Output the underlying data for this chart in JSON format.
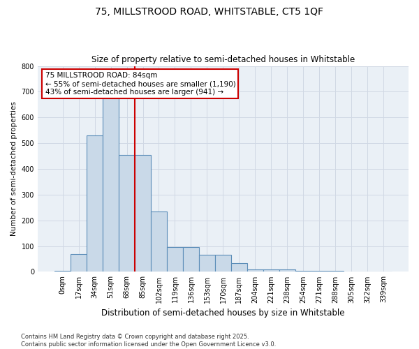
{
  "title_line1": "75, MILLSTROOD ROAD, WHITSTABLE, CT5 1QF",
  "title_line2": "Size of property relative to semi-detached houses in Whitstable",
  "xlabel": "Distribution of semi-detached houses by size in Whitstable",
  "ylabel": "Number of semi-detached properties",
  "footnote": "Contains HM Land Registry data © Crown copyright and database right 2025.\nContains public sector information licensed under the Open Government Licence v3.0.",
  "bin_labels": [
    "0sqm",
    "17sqm",
    "34sqm",
    "51sqm",
    "68sqm",
    "85sqm",
    "102sqm",
    "119sqm",
    "136sqm",
    "153sqm",
    "170sqm",
    "187sqm",
    "204sqm",
    "221sqm",
    "238sqm",
    "254sqm",
    "271sqm",
    "288sqm",
    "305sqm",
    "322sqm",
    "339sqm"
  ],
  "bar_values": [
    5,
    70,
    530,
    680,
    455,
    455,
    235,
    95,
    95,
    65,
    65,
    35,
    10,
    10,
    10,
    5,
    5,
    5,
    0,
    0,
    0
  ],
  "bar_color": "#c9d9e8",
  "bar_edge_color": "#5b8db8",
  "property_line_color": "#cc0000",
  "property_line_bin": 5,
  "annotation_text_line1": "75 MILLSTROOD ROAD: 84sqm",
  "annotation_text_line2": "← 55% of semi-detached houses are smaller (1,190)",
  "annotation_text_line3": "43% of semi-detached houses are larger (941) →",
  "annotation_box_color": "#cc0000",
  "ylim": [
    0,
    800
  ],
  "yticks": [
    0,
    100,
    200,
    300,
    400,
    500,
    600,
    700,
    800
  ],
  "grid_color": "#d0d8e4",
  "bg_color": "#eaf0f6"
}
